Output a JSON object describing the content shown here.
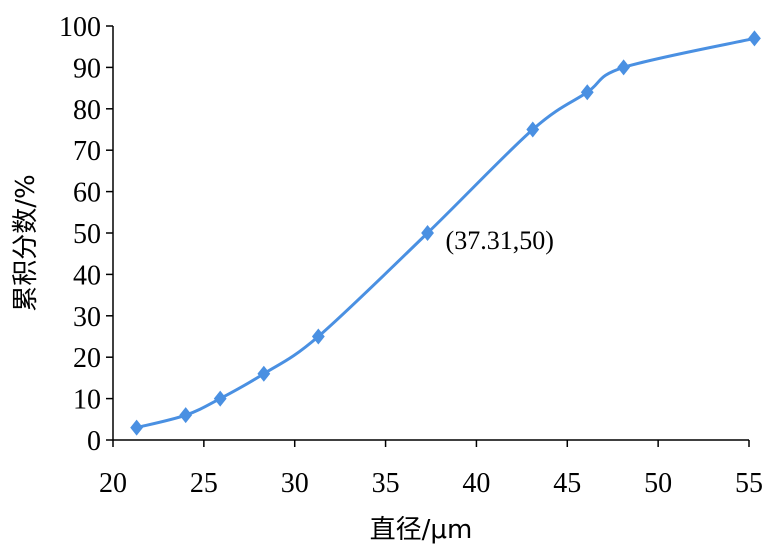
{
  "chart_data": {
    "type": "line",
    "xlabel": "直径/μm",
    "ylabel": "累积分数/%",
    "xlim": [
      20,
      55
    ],
    "ylim": [
      0,
      100
    ],
    "xticks": [
      20,
      25,
      30,
      35,
      40,
      45,
      50,
      55
    ],
    "yticks": [
      0,
      10,
      20,
      30,
      40,
      50,
      60,
      70,
      80,
      90,
      100
    ],
    "grid": false,
    "series": [
      {
        "color": "#4a90e2",
        "marker": "diamond",
        "smooth": true,
        "points": [
          {
            "x": 21.3,
            "y": 3
          },
          {
            "x": 24.0,
            "y": 6
          },
          {
            "x": 25.9,
            "y": 10
          },
          {
            "x": 28.3,
            "y": 16
          },
          {
            "x": 31.3,
            "y": 25
          },
          {
            "x": 37.31,
            "y": 50
          },
          {
            "x": 43.1,
            "y": 75
          },
          {
            "x": 46.1,
            "y": 84
          },
          {
            "x": 48.1,
            "y": 90
          },
          {
            "x": 55.3,
            "y": 97
          }
        ]
      }
    ],
    "annotations": [
      {
        "text": "(37.31,50)",
        "x": 37.31,
        "y": 50
      }
    ]
  }
}
